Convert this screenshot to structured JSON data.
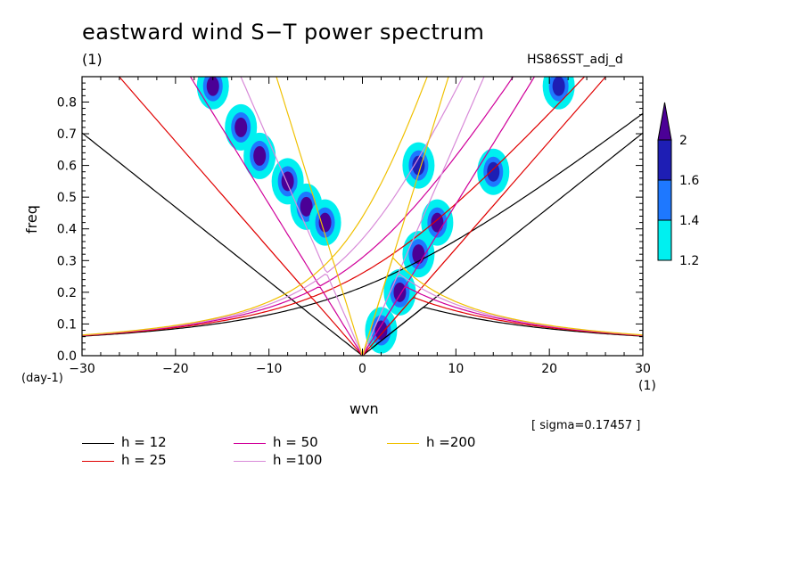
{
  "chart_data": {
    "type": "heatmap",
    "title": "eastward wind S−T power spectrum",
    "units_label": "(1)",
    "experiment": "HS86SST_adj_d",
    "xlabel": "wvn",
    "x_units": "(1)",
    "ylabel": "freq",
    "y_units": "(day-1)",
    "xlim": [
      -30,
      30
    ],
    "ylim": [
      0.0,
      0.88
    ],
    "xticks": [
      -30,
      -20,
      -10,
      0,
      10,
      20,
      30
    ],
    "yticks": [
      0.0,
      0.1,
      0.2,
      0.3,
      0.4,
      0.5,
      0.6,
      0.7,
      0.8
    ],
    "sigma_text": "[ sigma=0.17457 ]",
    "colorbar": {
      "levels": [
        1.2,
        1.4,
        1.6,
        2
      ],
      "labels": [
        "1.2",
        "1.4",
        "1.6",
        "2"
      ],
      "colors": [
        "#00f0f0",
        "#1e78ff",
        "#1e1eb4",
        "#4b0096"
      ]
    },
    "dispersion_curves": [
      {
        "name": "h = 12",
        "h": 12,
        "color": "#000000"
      },
      {
        "name": "h = 25",
        "h": 25,
        "color": "#e00000"
      },
      {
        "name": "h = 50",
        "h": 50,
        "color": "#d0009a"
      },
      {
        "name": "h =100",
        "h": 100,
        "color": "#d88ad8"
      },
      {
        "name": "h =200",
        "h": 200,
        "color": "#f0c000"
      }
    ],
    "power_features": [
      {
        "wvn": -16,
        "freq": 0.85,
        "level": 2
      },
      {
        "wvn": -13,
        "freq": 0.72,
        "level": 2
      },
      {
        "wvn": -11,
        "freq": 0.63,
        "level": 2
      },
      {
        "wvn": -8,
        "freq": 0.55,
        "level": 2
      },
      {
        "wvn": -6,
        "freq": 0.47,
        "level": 2
      },
      {
        "wvn": -4,
        "freq": 0.42,
        "level": 2
      },
      {
        "wvn": 2,
        "freq": 0.08,
        "level": 2
      },
      {
        "wvn": 4,
        "freq": 0.2,
        "level": 2
      },
      {
        "wvn": 6,
        "freq": 0.32,
        "level": 2
      },
      {
        "wvn": 8,
        "freq": 0.42,
        "level": 2
      },
      {
        "wvn": 6,
        "freq": 0.6,
        "level": 1.6
      },
      {
        "wvn": 14,
        "freq": 0.58,
        "level": 1.6
      },
      {
        "wvn": 21,
        "freq": 0.85,
        "level": 1.6
      }
    ]
  }
}
